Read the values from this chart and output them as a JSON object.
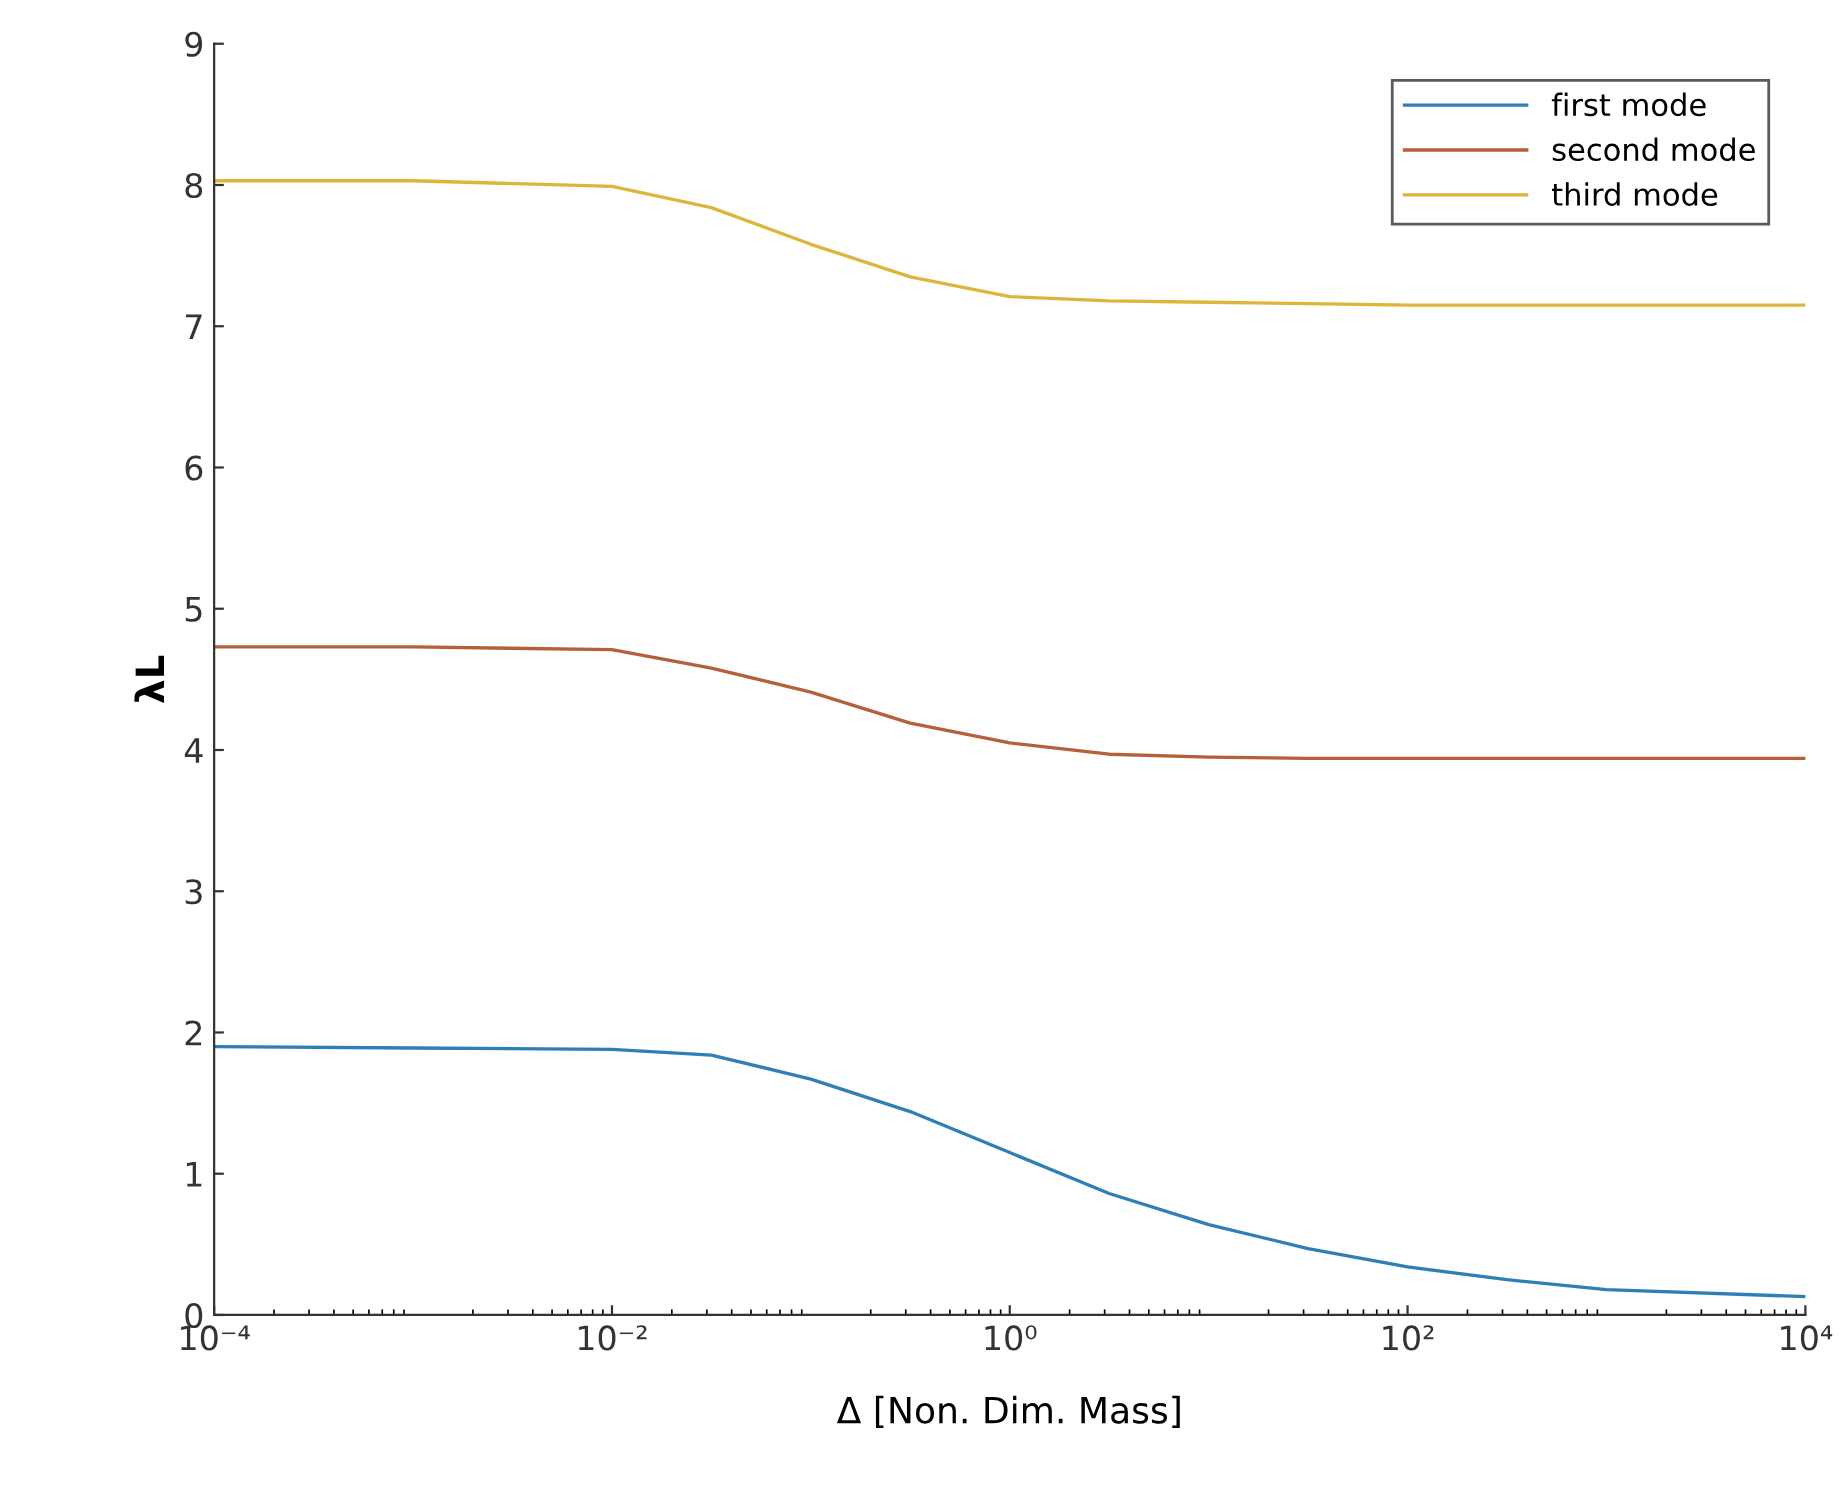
{
  "chart_data": {
    "type": "line",
    "xlabel": "Δ [Non. Dim. Mass]",
    "ylabel": "λL",
    "log": "x",
    "xlim": [
      0.0001,
      10000
    ],
    "xticks": [
      {
        "value": 0.0001,
        "label": "10⁻⁴"
      },
      {
        "value": 0.01,
        "label": "10⁻²"
      },
      {
        "value": 1,
        "label": "10⁰"
      },
      {
        "value": 100,
        "label": "10²"
      },
      {
        "value": 10000,
        "label": "10⁴"
      }
    ],
    "ylim": [
      0,
      9
    ],
    "yticks": [
      0,
      1,
      2,
      3,
      4,
      5,
      6,
      7,
      8,
      9
    ],
    "grid": false,
    "legend": "top right",
    "marker": "none",
    "line_style": "solid",
    "x": [
      0.0001,
      0.001,
      0.01,
      0.0316,
      0.1,
      0.316,
      1,
      3.16,
      10,
      31.6,
      100,
      316,
      1000,
      10000
    ],
    "series": [
      {
        "name": "first mode",
        "color": "#2f7fb5",
        "values": [
          1.9,
          1.89,
          1.88,
          1.84,
          1.67,
          1.44,
          1.15,
          0.86,
          0.64,
          0.47,
          0.34,
          0.25,
          0.18,
          0.13
        ]
      },
      {
        "name": "second mode",
        "color": "#b5603a",
        "values": [
          4.73,
          4.73,
          4.71,
          4.58,
          4.41,
          4.19,
          4.05,
          3.97,
          3.95,
          3.94,
          3.94,
          3.94,
          3.94,
          3.94
        ]
      },
      {
        "name": "third mode",
        "color": "#dcb63a",
        "values": [
          8.03,
          8.03,
          7.99,
          7.84,
          7.58,
          7.35,
          7.21,
          7.18,
          7.17,
          7.16,
          7.15,
          7.15,
          7.15,
          7.15
        ]
      }
    ]
  }
}
